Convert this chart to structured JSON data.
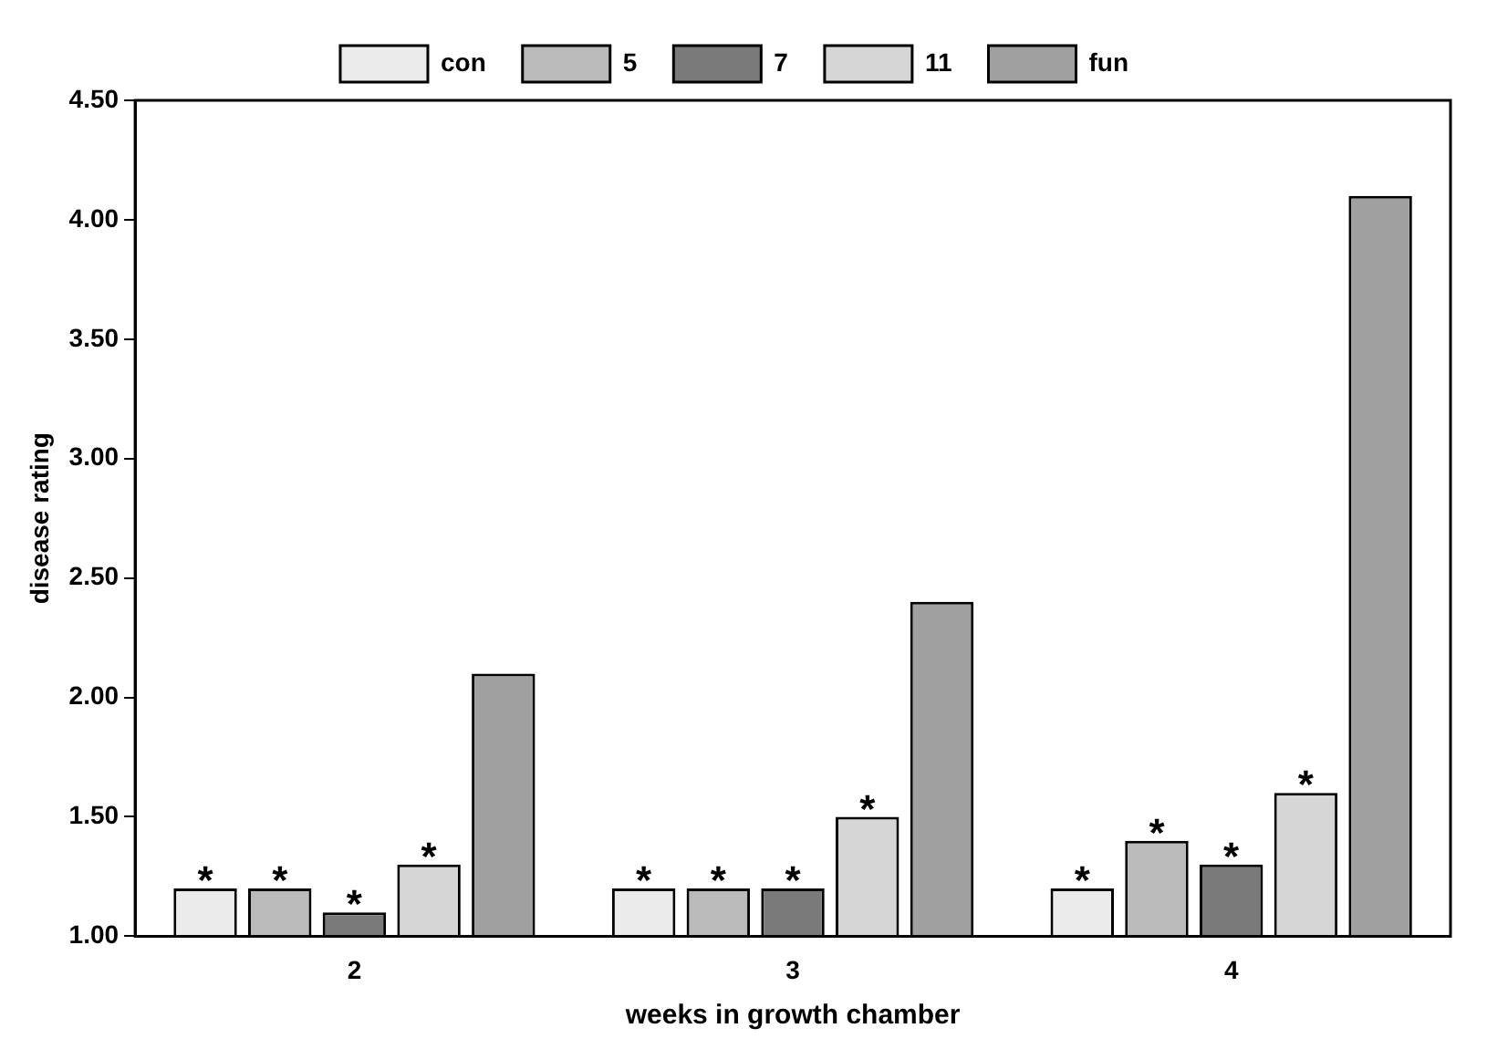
{
  "chart_data": {
    "type": "bar",
    "xlabel": "weeks in growth chamber",
    "ylabel": "disease rating",
    "categories": [
      "2",
      "3",
      "4"
    ],
    "series": [
      {
        "name": "con",
        "color": "#ebebeb",
        "values": [
          1.2,
          1.2,
          1.2
        ],
        "value_labels": [
          "*",
          "*",
          "*"
        ]
      },
      {
        "name": "5",
        "color": "#bababa",
        "values": [
          1.2,
          1.2,
          1.4
        ],
        "value_labels": [
          "*",
          "*",
          "*"
        ]
      },
      {
        "name": "7",
        "color": "#7a7a7a",
        "values": [
          1.1,
          1.2,
          1.3
        ],
        "value_labels": [
          "*",
          "*",
          "*"
        ]
      },
      {
        "name": "11",
        "color": "#d6d6d6",
        "values": [
          1.3,
          1.5,
          1.6
        ],
        "value_labels": [
          "*",
          "*",
          "*"
        ]
      },
      {
        "name": "fun",
        "color": "#a0a0a0",
        "values": [
          2.1,
          2.4,
          4.1
        ],
        "value_labels": [
          null,
          null,
          null
        ]
      }
    ],
    "ylim": [
      1,
      4.5
    ],
    "yticks": [
      {
        "value": 1,
        "label": "1.00"
      },
      {
        "value": 1.5,
        "label": "1.50"
      },
      {
        "value": 2,
        "label": "2.00"
      },
      {
        "value": 2.5,
        "label": "2.50"
      },
      {
        "value": 3,
        "label": "3.00"
      },
      {
        "value": 3.5,
        "label": "3.50"
      },
      {
        "value": 4,
        "label": "4.00"
      },
      {
        "value": 4.5,
        "label": "4.50"
      }
    ],
    "grid": false,
    "legend": "top"
  }
}
